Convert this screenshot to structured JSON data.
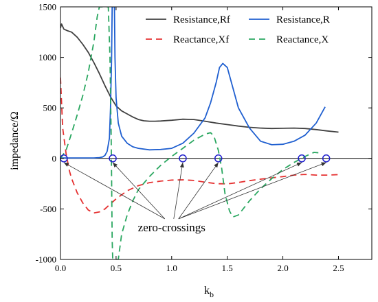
{
  "chart_data": {
    "type": "line",
    "xlabel": "k",
    "xlabel_sub": "b",
    "ylabel": "impedance/Ω",
    "xlim": [
      0,
      2.8
    ],
    "ylim": [
      -1000,
      1500
    ],
    "x_ticks": [
      "0.0",
      "0.5",
      "1.0",
      "1.5",
      "2.0",
      "2.5"
    ],
    "x_tick_values": [
      0,
      0.5,
      1.0,
      1.5,
      2.0,
      2.5
    ],
    "y_ticks": [
      "-1000",
      "-500",
      "0",
      "500",
      "1000",
      "1500"
    ],
    "y_tick_values": [
      -1000,
      -500,
      0,
      500,
      1000,
      1500
    ],
    "legend": {
      "placement": "top-right",
      "columns": 2
    },
    "series": [
      {
        "name": "Resistance,Rf",
        "color": "#404040",
        "dash": "solid",
        "points": [
          [
            0.0,
            1290
          ],
          [
            0.01,
            1330
          ],
          [
            0.03,
            1280
          ],
          [
            0.06,
            1265
          ],
          [
            0.1,
            1250
          ],
          [
            0.15,
            1200
          ],
          [
            0.2,
            1130
          ],
          [
            0.25,
            1050
          ],
          [
            0.3,
            950
          ],
          [
            0.35,
            840
          ],
          [
            0.4,
            720
          ],
          [
            0.45,
            610
          ],
          [
            0.5,
            520
          ],
          [
            0.55,
            470
          ],
          [
            0.6,
            440
          ],
          [
            0.65,
            410
          ],
          [
            0.7,
            385
          ],
          [
            0.75,
            372
          ],
          [
            0.8,
            368
          ],
          [
            0.85,
            368
          ],
          [
            0.9,
            370
          ],
          [
            1.0,
            378
          ],
          [
            1.1,
            388
          ],
          [
            1.2,
            385
          ],
          [
            1.3,
            368
          ],
          [
            1.4,
            350
          ],
          [
            1.5,
            335
          ],
          [
            1.6,
            320
          ],
          [
            1.7,
            308
          ],
          [
            1.8,
            300
          ],
          [
            1.9,
            296
          ],
          [
            2.0,
            298
          ],
          [
            2.1,
            300
          ],
          [
            2.2,
            296
          ],
          [
            2.3,
            285
          ],
          [
            2.4,
            272
          ],
          [
            2.5,
            260
          ]
        ]
      },
      {
        "name": "Resistance,R",
        "color": "#1f5fd0",
        "dash": "solid",
        "points": [
          [
            0.0,
            5
          ],
          [
            0.1,
            5
          ],
          [
            0.2,
            5
          ],
          [
            0.3,
            5
          ],
          [
            0.35,
            8
          ],
          [
            0.38,
            15
          ],
          [
            0.4,
            30
          ],
          [
            0.42,
            70
          ],
          [
            0.44,
            200
          ],
          [
            0.45,
            500
          ],
          [
            0.46,
            1000
          ],
          [
            0.465,
            1500
          ],
          [
            0.485,
            1500
          ],
          [
            0.49,
            1000
          ],
          [
            0.5,
            600
          ],
          [
            0.52,
            350
          ],
          [
            0.55,
            220
          ],
          [
            0.6,
            150
          ],
          [
            0.65,
            115
          ],
          [
            0.7,
            100
          ],
          [
            0.8,
            85
          ],
          [
            0.9,
            88
          ],
          [
            1.0,
            100
          ],
          [
            1.1,
            150
          ],
          [
            1.2,
            250
          ],
          [
            1.3,
            400
          ],
          [
            1.35,
            550
          ],
          [
            1.4,
            750
          ],
          [
            1.43,
            900
          ],
          [
            1.46,
            940
          ],
          [
            1.5,
            900
          ],
          [
            1.55,
            700
          ],
          [
            1.6,
            500
          ],
          [
            1.7,
            300
          ],
          [
            1.8,
            170
          ],
          [
            1.9,
            135
          ],
          [
            2.0,
            140
          ],
          [
            2.1,
            170
          ],
          [
            2.2,
            230
          ],
          [
            2.3,
            350
          ],
          [
            2.38,
            510
          ]
        ]
      },
      {
        "name": "Reactance,Xf",
        "color": "#e53030",
        "dash": "dash",
        "points": [
          [
            0.0,
            800
          ],
          [
            0.02,
            300
          ],
          [
            0.05,
            50
          ],
          [
            0.08,
            -120
          ],
          [
            0.1,
            -200
          ],
          [
            0.15,
            -340
          ],
          [
            0.2,
            -440
          ],
          [
            0.25,
            -510
          ],
          [
            0.3,
            -540
          ],
          [
            0.35,
            -530
          ],
          [
            0.4,
            -500
          ],
          [
            0.45,
            -450
          ],
          [
            0.5,
            -400
          ],
          [
            0.6,
            -320
          ],
          [
            0.7,
            -270
          ],
          [
            0.8,
            -240
          ],
          [
            0.9,
            -225
          ],
          [
            1.0,
            -215
          ],
          [
            1.1,
            -212
          ],
          [
            1.2,
            -218
          ],
          [
            1.3,
            -235
          ],
          [
            1.4,
            -250
          ],
          [
            1.5,
            -252
          ],
          [
            1.6,
            -238
          ],
          [
            1.7,
            -220
          ],
          [
            1.8,
            -205
          ],
          [
            1.9,
            -192
          ],
          [
            2.0,
            -180
          ],
          [
            2.1,
            -165
          ],
          [
            2.2,
            -158
          ],
          [
            2.3,
            -165
          ],
          [
            2.4,
            -165
          ],
          [
            2.5,
            -160
          ]
        ]
      },
      {
        "name": "Reactance,X",
        "color": "#2aa760",
        "dash": "dash",
        "points": [
          [
            0.0,
            0
          ],
          [
            0.05,
            80
          ],
          [
            0.1,
            250
          ],
          [
            0.15,
            430
          ],
          [
            0.2,
            620
          ],
          [
            0.25,
            850
          ],
          [
            0.3,
            1150
          ],
          [
            0.33,
            1400
          ],
          [
            0.35,
            1500
          ],
          [
            0.43,
            1500
          ],
          [
            0.445,
            1000
          ],
          [
            0.455,
            300
          ],
          [
            0.46,
            -200
          ],
          [
            0.465,
            -800
          ],
          [
            0.47,
            -1000
          ],
          [
            0.52,
            -1000
          ],
          [
            0.55,
            -750
          ],
          [
            0.6,
            -560
          ],
          [
            0.65,
            -420
          ],
          [
            0.7,
            -310
          ],
          [
            0.8,
            -180
          ],
          [
            0.9,
            -70
          ],
          [
            1.0,
            20
          ],
          [
            1.05,
            60
          ],
          [
            1.1,
            100
          ],
          [
            1.2,
            180
          ],
          [
            1.3,
            240
          ],
          [
            1.35,
            255
          ],
          [
            1.38,
            220
          ],
          [
            1.42,
            80
          ],
          [
            1.45,
            -100
          ],
          [
            1.48,
            -350
          ],
          [
            1.52,
            -520
          ],
          [
            1.55,
            -580
          ],
          [
            1.6,
            -560
          ],
          [
            1.7,
            -420
          ],
          [
            1.8,
            -300
          ],
          [
            1.9,
            -200
          ],
          [
            2.0,
            -110
          ],
          [
            2.1,
            -40
          ],
          [
            2.2,
            20
          ],
          [
            2.28,
            60
          ],
          [
            2.33,
            55
          ]
        ]
      }
    ],
    "zero_crossings": [
      0.03,
      0.47,
      1.1,
      1.42,
      2.17,
      2.39
    ],
    "annotation": {
      "text": "zero-crossings",
      "anchor": [
        1.0,
        -680
      ]
    }
  }
}
